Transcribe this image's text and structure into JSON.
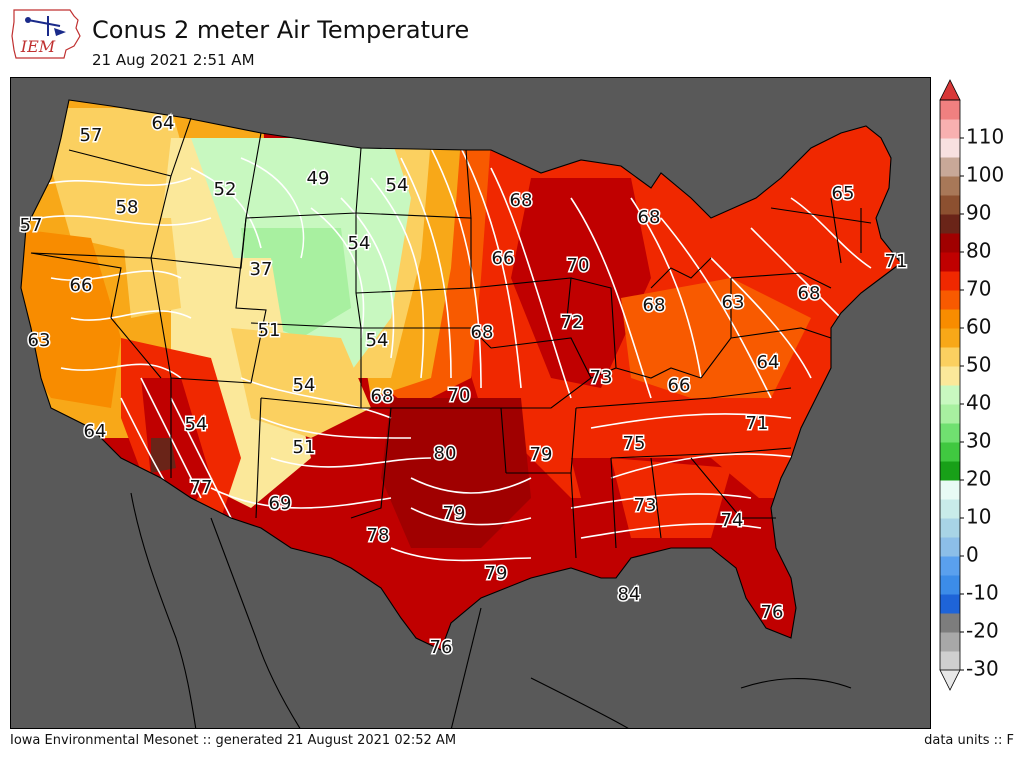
{
  "header": {
    "title": "Conus 2 meter Air Temperature",
    "subtitle": "21 Aug 2021 2:51 AM",
    "logo_text": "IEM"
  },
  "footer": {
    "left": "Iowa Environmental Mesonet :: generated 21 August 2021 02:52 AM",
    "right": "data units :: F"
  },
  "colorbar": {
    "tick_labels": [
      "-30",
      "-20",
      "-10",
      "0",
      "10",
      "20",
      "30",
      "40",
      "50",
      "60",
      "70",
      "80",
      "90",
      "100",
      "110"
    ],
    "levels": [
      -30,
      -25,
      -20,
      -15,
      -10,
      -5,
      0,
      5,
      10,
      15,
      20,
      25,
      30,
      35,
      40,
      45,
      50,
      55,
      60,
      65,
      70,
      75,
      80,
      85,
      90,
      95,
      100,
      105,
      110,
      115,
      120
    ],
    "colors": [
      "#e8e8e8",
      "#cfcfcf",
      "#a8a8a8",
      "#7d7d7d",
      "#1e64d8",
      "#3c8ce8",
      "#5aa0ee",
      "#8cbee8",
      "#a8d4e6",
      "#c8ecea",
      "#e8fbf5",
      "#18a018",
      "#40c840",
      "#70e070",
      "#a8f0a0",
      "#c8f8c0",
      "#fbe89a",
      "#fbd060",
      "#f8a818",
      "#f88c00",
      "#f85a00",
      "#f02800",
      "#c00000",
      "#a00000",
      "#6a2418",
      "#8c5030",
      "#a87858",
      "#c8a898",
      "#f8e0e0",
      "#f8b0b0",
      "#f08080",
      "#d83838"
    ]
  },
  "map": {
    "background_color": "#595959",
    "temperature_labels": [
      {
        "text": "57"
      },
      {
        "text": "64"
      },
      {
        "text": "52"
      },
      {
        "text": "49"
      },
      {
        "text": "54"
      },
      {
        "text": "58"
      },
      {
        "text": "57"
      },
      {
        "text": "54"
      },
      {
        "text": "37"
      },
      {
        "text": "68"
      },
      {
        "text": "66"
      },
      {
        "text": "70"
      },
      {
        "text": "68"
      },
      {
        "text": "65"
      },
      {
        "text": "71"
      },
      {
        "text": "66"
      },
      {
        "text": "51"
      },
      {
        "text": "63"
      },
      {
        "text": "54"
      },
      {
        "text": "68"
      },
      {
        "text": "72"
      },
      {
        "text": "68"
      },
      {
        "text": "63"
      },
      {
        "text": "68"
      },
      {
        "text": "54"
      },
      {
        "text": "68"
      },
      {
        "text": "70"
      },
      {
        "text": "73"
      },
      {
        "text": "66"
      },
      {
        "text": "64"
      },
      {
        "text": "64"
      },
      {
        "text": "54"
      },
      {
        "text": "80"
      },
      {
        "text": "79"
      },
      {
        "text": "75"
      },
      {
        "text": "71"
      },
      {
        "text": "51"
      },
      {
        "text": "77"
      },
      {
        "text": "69"
      },
      {
        "text": "79"
      },
      {
        "text": "73"
      },
      {
        "text": "74"
      },
      {
        "text": "78"
      },
      {
        "text": "79"
      },
      {
        "text": "84"
      },
      {
        "text": "76"
      },
      {
        "text": "76"
      }
    ]
  }
}
